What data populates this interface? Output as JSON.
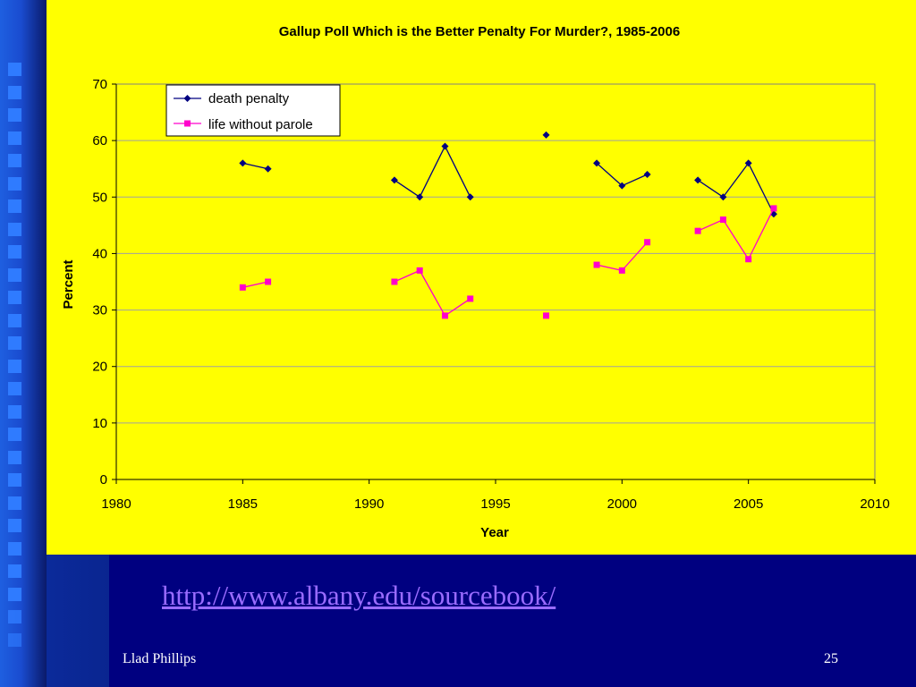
{
  "slide": {
    "link_text": "http://www.albany.edu/sourcebook/",
    "author": "Llad Phillips",
    "page_number": "25",
    "colors": {
      "background": "#000080",
      "chart_background": "#ffff00",
      "link": "#9a6cff",
      "death_series": "#000080",
      "life_series": "#ff00cc"
    }
  },
  "chart_data": {
    "type": "line",
    "title": "Gallup Poll Which is the Better Penalty For Murder?, 1985-2006",
    "xlabel": "Year",
    "ylabel": "Percent",
    "xlim": [
      1980,
      2010
    ],
    "ylim": [
      0,
      70
    ],
    "xticks": [
      1980,
      1985,
      1990,
      1995,
      2000,
      2005,
      2010
    ],
    "yticks": [
      0,
      10,
      20,
      30,
      40,
      50,
      60,
      70
    ],
    "grid": "horizontal",
    "legend_position": "top-left",
    "series": [
      {
        "name": "death penalty",
        "marker": "diamond",
        "color": "#000080",
        "points": [
          [
            1985,
            56
          ],
          [
            1986,
            55
          ],
          [
            1991,
            53
          ],
          [
            1992,
            50
          ],
          [
            1993,
            59
          ],
          [
            1994,
            50
          ],
          [
            1997,
            61
          ],
          [
            1999,
            56
          ],
          [
            2000,
            52
          ],
          [
            2001,
            54
          ],
          [
            2003,
            53
          ],
          [
            2004,
            50
          ],
          [
            2005,
            56
          ],
          [
            2006,
            47
          ]
        ]
      },
      {
        "name": "life without parole",
        "marker": "square",
        "color": "#ff00cc",
        "points": [
          [
            1985,
            34
          ],
          [
            1986,
            35
          ],
          [
            1991,
            35
          ],
          [
            1992,
            37
          ],
          [
            1993,
            29
          ],
          [
            1994,
            32
          ],
          [
            1997,
            29
          ],
          [
            1999,
            38
          ],
          [
            2000,
            37
          ],
          [
            2001,
            42
          ],
          [
            2003,
            44
          ],
          [
            2004,
            46
          ],
          [
            2005,
            39
          ],
          [
            2006,
            48
          ]
        ]
      }
    ]
  }
}
